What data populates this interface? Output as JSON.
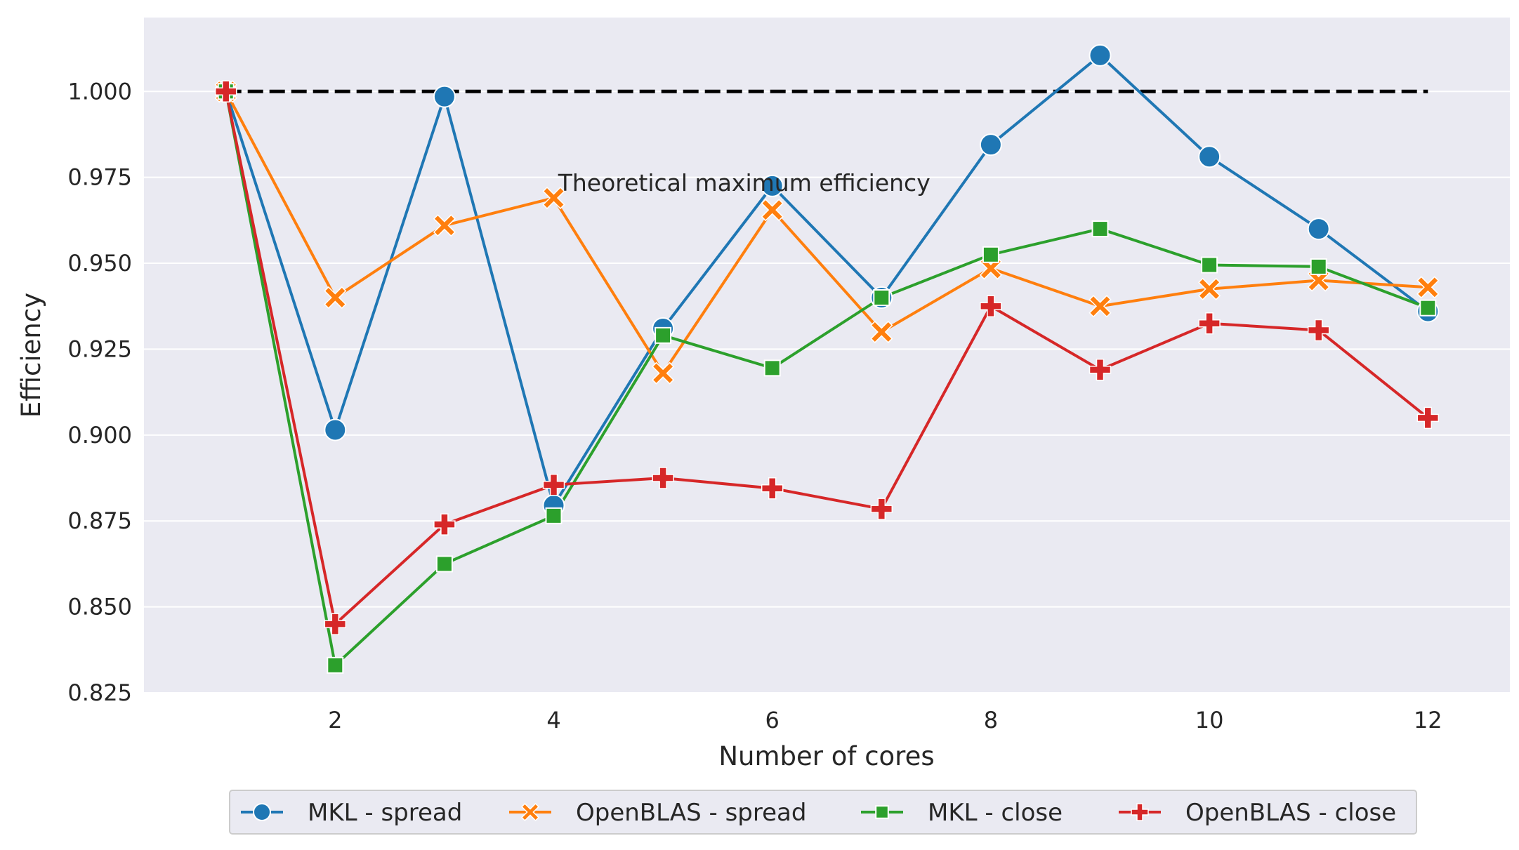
{
  "chart_data": {
    "type": "line",
    "title": "",
    "xlabel": "Number of cores",
    "ylabel": "Efficiency",
    "x": [
      1,
      2,
      3,
      4,
      5,
      6,
      7,
      8,
      9,
      10,
      11,
      12
    ],
    "xlim": [
      0.25,
      12.75
    ],
    "ylim": [
      0.825,
      1.0215
    ],
    "xticks": [
      2,
      4,
      6,
      8,
      10,
      12
    ],
    "xtick_labels": [
      "2",
      "4",
      "6",
      "8",
      "10",
      "12"
    ],
    "yticks": [
      0.825,
      0.85,
      0.875,
      0.9,
      0.925,
      0.95,
      0.975,
      1.0
    ],
    "ytick_labels": [
      "0.825",
      "0.850",
      "0.875",
      "0.900",
      "0.925",
      "0.950",
      "0.975",
      "1.000"
    ],
    "grid": true,
    "legend_placement": "bottom-center, below axes",
    "series": [
      {
        "name": "MKL - spread",
        "color": "#1f77b4",
        "marker": "circle",
        "values": [
          1.0,
          0.9015,
          0.9985,
          0.8795,
          0.931,
          0.9725,
          0.94,
          0.9845,
          1.0105,
          0.981,
          0.96,
          0.936
        ]
      },
      {
        "name": "OpenBLAS - spread",
        "color": "#ff7f0e",
        "marker": "x",
        "values": [
          1.0,
          0.94,
          0.961,
          0.969,
          0.918,
          0.9655,
          0.93,
          0.9485,
          0.9375,
          0.9425,
          0.945,
          0.943
        ]
      },
      {
        "name": "MKL - close",
        "color": "#2ca02c",
        "marker": "square",
        "values": [
          1.0,
          0.833,
          0.8625,
          0.8765,
          0.929,
          0.9195,
          0.94,
          0.9525,
          0.96,
          0.9495,
          0.949,
          0.937
        ]
      },
      {
        "name": "OpenBLAS - close",
        "color": "#d62728",
        "marker": "plus",
        "values": [
          1.0,
          0.845,
          0.874,
          0.8855,
          0.8875,
          0.8845,
          0.8785,
          0.9375,
          0.919,
          0.9325,
          0.9305,
          0.905
        ]
      }
    ],
    "reference_line": {
      "y": 1.0,
      "x_from": 1,
      "x_to": 12,
      "style": "dashed",
      "color": "#000000"
    },
    "annotation": {
      "text": "Theoretical maximum efficiency",
      "x": 4.04,
      "y": 0.9735
    }
  }
}
